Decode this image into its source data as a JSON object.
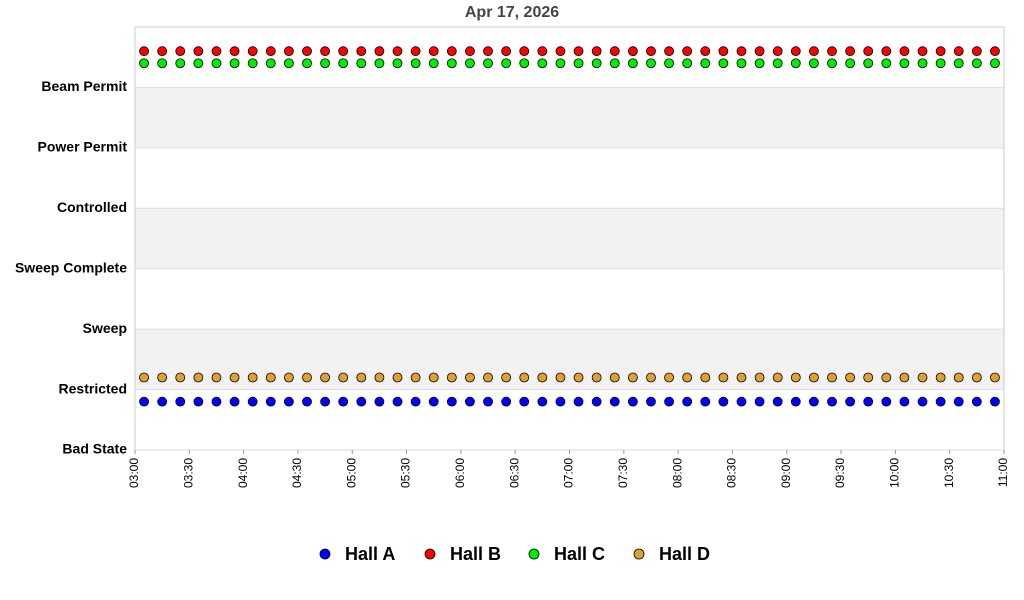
{
  "chart_data": {
    "type": "scatter",
    "title": "Apr 17, 2026",
    "x": [
      "03:05",
      "03:15",
      "03:25",
      "03:35",
      "03:45",
      "03:55",
      "04:05",
      "04:15",
      "04:25",
      "04:35",
      "04:45",
      "04:55",
      "05:05",
      "05:15",
      "05:25",
      "05:35",
      "05:45",
      "05:55",
      "06:05",
      "06:15",
      "06:25",
      "06:35",
      "06:45",
      "06:55",
      "07:05",
      "07:15",
      "07:25",
      "07:35",
      "07:45",
      "07:55",
      "08:05",
      "08:15",
      "08:25",
      "08:35",
      "08:45",
      "08:55",
      "09:05",
      "09:15",
      "09:25",
      "09:35",
      "09:45",
      "09:55",
      "10:05",
      "10:15",
      "10:25",
      "10:35",
      "10:45",
      "10:55"
    ],
    "xlim": [
      "03:00",
      "11:00"
    ],
    "xticks": [
      "03:00",
      "03:30",
      "04:00",
      "04:30",
      "05:00",
      "05:30",
      "06:00",
      "06:30",
      "07:00",
      "07:30",
      "08:00",
      "08:30",
      "09:00",
      "09:30",
      "10:00",
      "10:30",
      "11:00"
    ],
    "ylim": [
      0,
      7
    ],
    "yticks": [
      {
        "value": 0,
        "label": "Bad State"
      },
      {
        "value": 1,
        "label": "Restricted"
      },
      {
        "value": 2,
        "label": "Sweep"
      },
      {
        "value": 3,
        "label": "Sweep Complete"
      },
      {
        "value": 4,
        "label": "Controlled"
      },
      {
        "value": 5,
        "label": "Power Permit"
      },
      {
        "value": 6,
        "label": "Beam Permit"
      }
    ],
    "band_color": "#f2f2f2",
    "grid": true,
    "legend": "bottom",
    "series": [
      {
        "name": "Hall A",
        "color": "#0000ff",
        "values": [
          0.8,
          0.8,
          0.8,
          0.8,
          0.8,
          0.8,
          0.8,
          0.8,
          0.8,
          0.8,
          0.8,
          0.8,
          0.8,
          0.8,
          0.8,
          0.8,
          0.8,
          0.8,
          0.8,
          0.8,
          0.8,
          0.8,
          0.8,
          0.8,
          0.8,
          0.8,
          0.8,
          0.8,
          0.8,
          0.8,
          0.8,
          0.8,
          0.8,
          0.8,
          0.8,
          0.8,
          0.8,
          0.8,
          0.8,
          0.8,
          0.8,
          0.8,
          0.8,
          0.8,
          0.8,
          0.8,
          0.8,
          0.8
        ]
      },
      {
        "name": "Hall B",
        "color": "#ff0000",
        "values": [
          6.6,
          6.6,
          6.6,
          6.6,
          6.6,
          6.6,
          6.6,
          6.6,
          6.6,
          6.6,
          6.6,
          6.6,
          6.6,
          6.6,
          6.6,
          6.6,
          6.6,
          6.6,
          6.6,
          6.6,
          6.6,
          6.6,
          6.6,
          6.6,
          6.6,
          6.6,
          6.6,
          6.6,
          6.6,
          6.6,
          6.6,
          6.6,
          6.6,
          6.6,
          6.6,
          6.6,
          6.6,
          6.6,
          6.6,
          6.6,
          6.6,
          6.6,
          6.6,
          6.6,
          6.6,
          6.6,
          6.6,
          6.6
        ]
      },
      {
        "name": "Hall C",
        "color": "#00ee00",
        "values": [
          6.4,
          6.4,
          6.4,
          6.4,
          6.4,
          6.4,
          6.4,
          6.4,
          6.4,
          6.4,
          6.4,
          6.4,
          6.4,
          6.4,
          6.4,
          6.4,
          6.4,
          6.4,
          6.4,
          6.4,
          6.4,
          6.4,
          6.4,
          6.4,
          6.4,
          6.4,
          6.4,
          6.4,
          6.4,
          6.4,
          6.4,
          6.4,
          6.4,
          6.4,
          6.4,
          6.4,
          6.4,
          6.4,
          6.4,
          6.4,
          6.4,
          6.4,
          6.4,
          6.4,
          6.4,
          6.4,
          6.4,
          6.4
        ]
      },
      {
        "name": "Hall D",
        "color": "#e0a030",
        "values": [
          1.2,
          1.2,
          1.2,
          1.2,
          1.2,
          1.2,
          1.2,
          1.2,
          1.2,
          1.2,
          1.2,
          1.2,
          1.2,
          1.2,
          1.2,
          1.2,
          1.2,
          1.2,
          1.2,
          1.2,
          1.2,
          1.2,
          1.2,
          1.2,
          1.2,
          1.2,
          1.2,
          1.2,
          1.2,
          1.2,
          1.2,
          1.2,
          1.2,
          1.2,
          1.2,
          1.2,
          1.2,
          1.2,
          1.2,
          1.2,
          1.2,
          1.2,
          1.2,
          1.2,
          1.2,
          1.2,
          1.2,
          1.2
        ]
      }
    ]
  }
}
